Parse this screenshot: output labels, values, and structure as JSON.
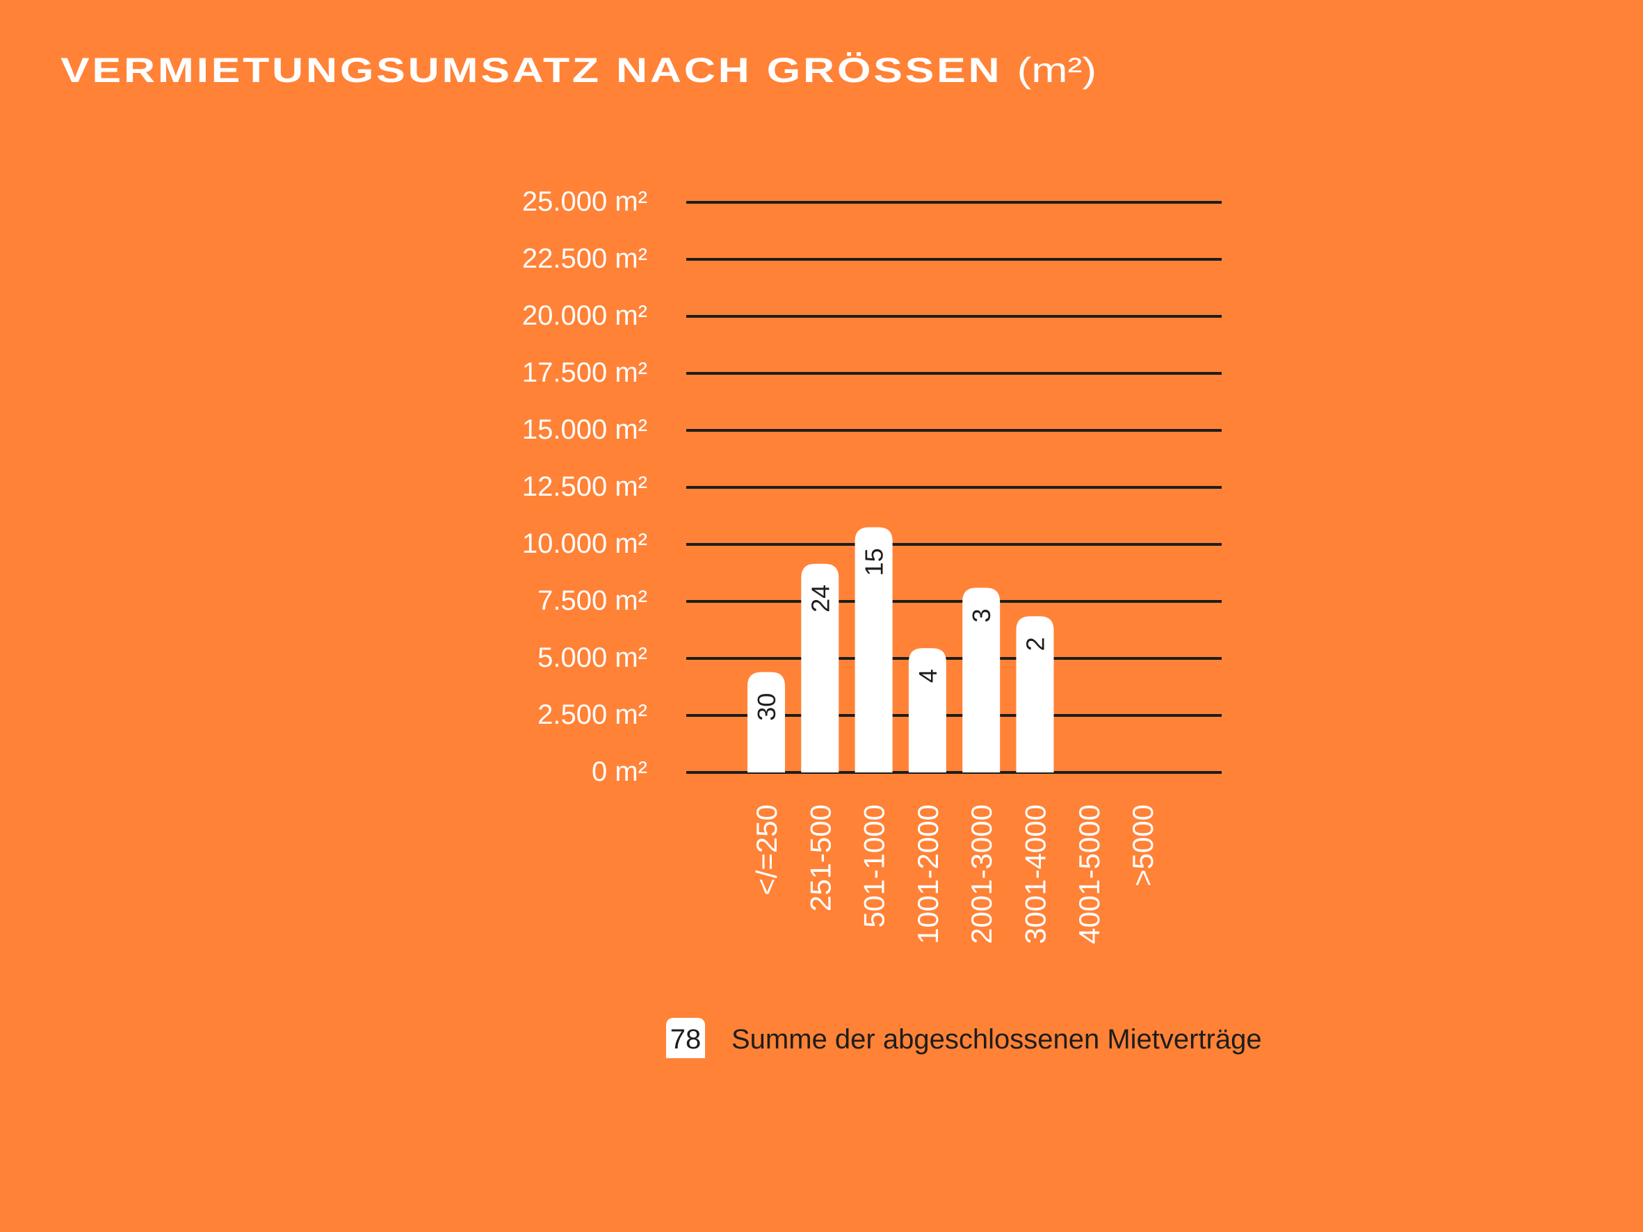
{
  "title": {
    "main": "VERMIETUNGSUMSATZ NACH GRÖSSEN",
    "unit": "(m²)"
  },
  "colors": {
    "background": "#FF8237",
    "bar": "#FFFFFF",
    "grid": "#1D1D1B",
    "text": "#FFFFFF"
  },
  "chart_data": {
    "type": "bar",
    "title": "VERMIETUNGSUMSATZ NACH GRÖSSEN (m²)",
    "xlabel": "",
    "ylabel": "",
    "ylim": [
      0,
      25000
    ],
    "grid": true,
    "yticks": [
      0,
      2500,
      5000,
      7500,
      10000,
      12500,
      15000,
      17500,
      20000,
      22500,
      25000
    ],
    "ytick_labels": [
      "0 m²",
      "2.500 m²",
      "5.000 m²",
      "7.500 m²",
      "10.000 m²",
      "12.500 m²",
      "15.000 m²",
      "17.500 m²",
      "20.000 m²",
      "22.500 m²",
      "25.000 m²"
    ],
    "categories": [
      "</=250",
      "251-500",
      "501-1000",
      "1001-2000",
      "2001-3000",
      "3001-4000",
      "4001-5000",
      ">5000"
    ],
    "values": [
      4400,
      9150,
      10750,
      5450,
      8100,
      6850,
      0,
      0
    ],
    "bar_labels": [
      "30",
      "24",
      "15",
      "4",
      "3",
      "2",
      "",
      ""
    ],
    "legend": {
      "value": "78",
      "label": "Summe der abgeschlossenen Mietverträge",
      "placement": "bottom"
    }
  }
}
